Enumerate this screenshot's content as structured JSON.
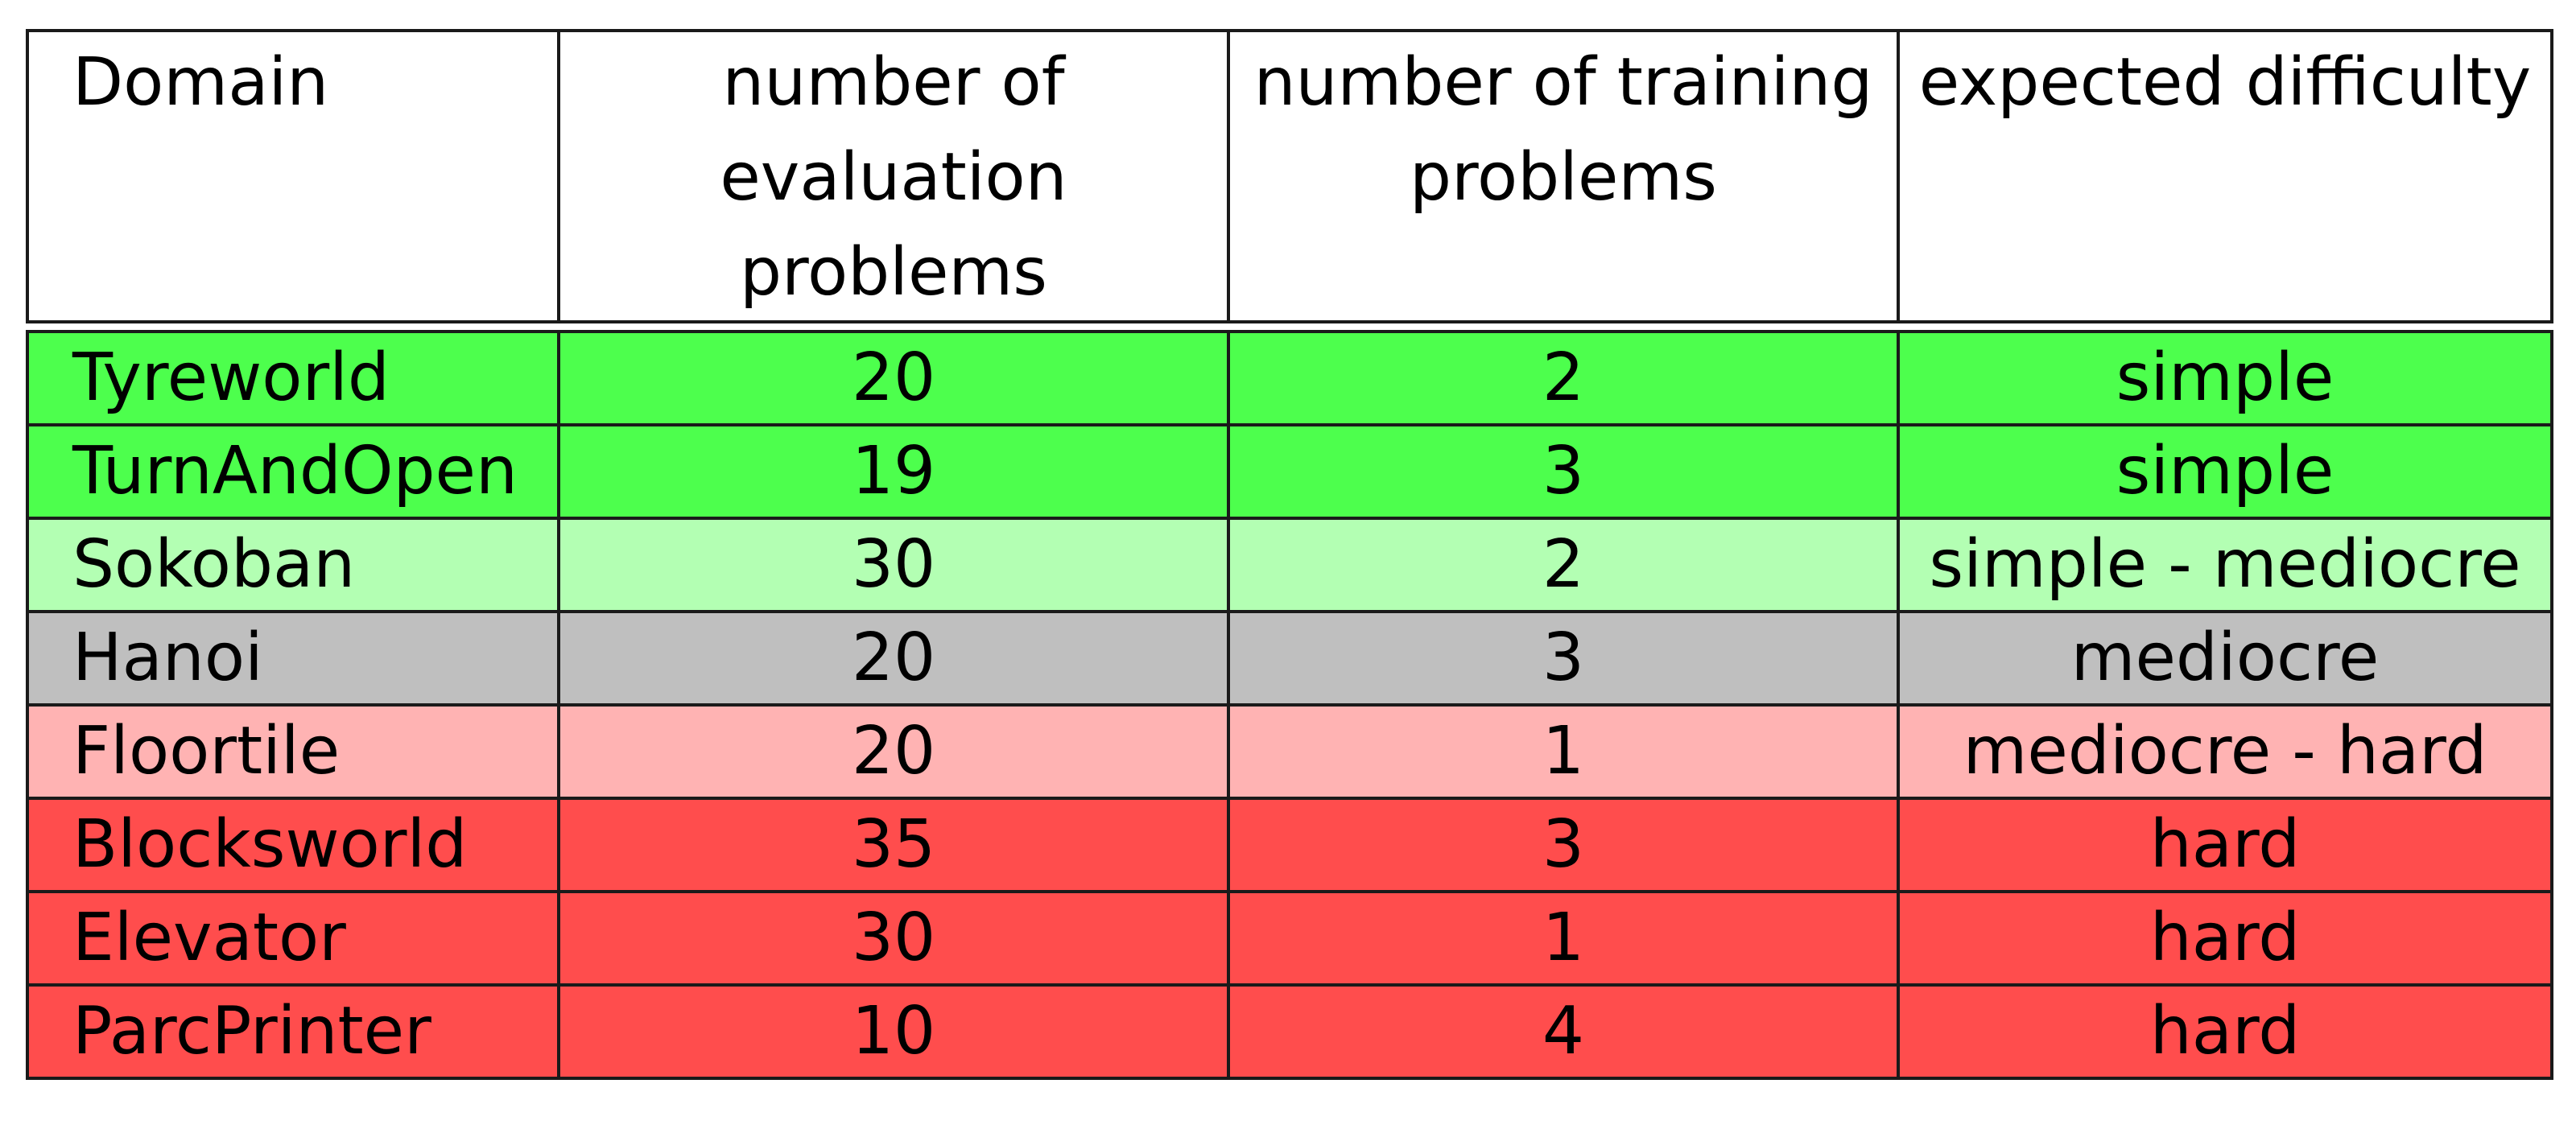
{
  "table": {
    "headers": [
      "Domain",
      "number of evaluation problems",
      "number of training problems",
      "expected difficulty"
    ],
    "rows": [
      {
        "domain": "Tyreworld",
        "evaluation": "20",
        "training": "2",
        "difficulty": "simple",
        "color": "#4dff4d"
      },
      {
        "domain": "TurnAndOpen",
        "evaluation": "19",
        "training": "3",
        "difficulty": "simple",
        "color": "#4dff4d"
      },
      {
        "domain": "Sokoban",
        "evaluation": "30",
        "training": "2",
        "difficulty": "simple - mediocre",
        "color": "#b3ffb3"
      },
      {
        "domain": "Hanoi",
        "evaluation": "20",
        "training": "3",
        "difficulty": "mediocre",
        "color": "#bfbfbf"
      },
      {
        "domain": "Floortile",
        "evaluation": "20",
        "training": "1",
        "difficulty": "mediocre - hard",
        "color": "#ffb3b3"
      },
      {
        "domain": "Blocksworld",
        "evaluation": "35",
        "training": "3",
        "difficulty": "hard",
        "color": "#ff4d4d"
      },
      {
        "domain": "Elevator",
        "evaluation": "30",
        "training": "1",
        "difficulty": "hard",
        "color": "#ff4d4d"
      },
      {
        "domain": "ParcPrinter",
        "evaluation": "10",
        "training": "4",
        "difficulty": "hard",
        "color": "#ff4d4d"
      }
    ]
  }
}
